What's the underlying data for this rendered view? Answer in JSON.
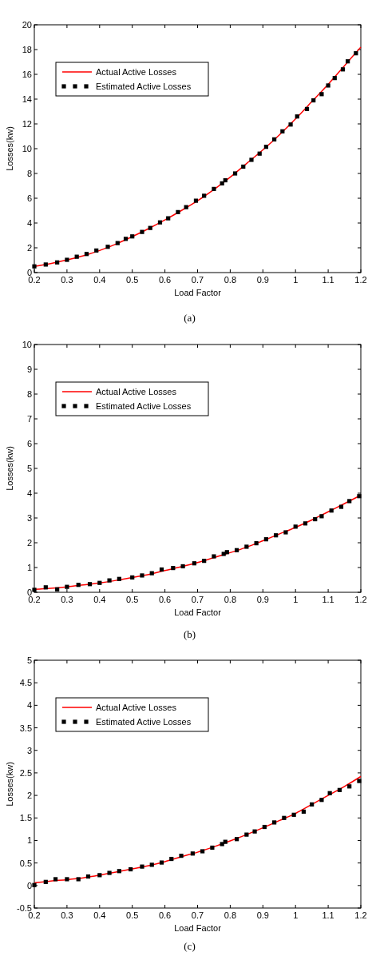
{
  "chart_data": [
    {
      "type": "line",
      "xlabel": "Load Factor",
      "ylabel": "Losses(kw)",
      "annotations": [
        "(a)"
      ],
      "xlim": [
        0.2,
        1.2
      ],
      "xticks": [
        0.2,
        0.3,
        0.4,
        0.5,
        0.6,
        0.7,
        0.8,
        0.9,
        1,
        1.1,
        1.2
      ],
      "ylim": [
        0,
        20
      ],
      "yticks": [
        0,
        2,
        4,
        6,
        8,
        10,
        12,
        14,
        16,
        18,
        20
      ],
      "legend": "top left",
      "grid": false,
      "series": [
        {
          "name": "Actual Active Losses",
          "type": "line",
          "color": "#ff0000",
          "marker": "none",
          "line_style": "solid",
          "x": [
            0.2,
            0.25,
            0.3,
            0.35,
            0.4,
            0.45,
            0.5,
            0.55,
            0.6,
            0.65,
            0.7,
            0.75,
            0.8,
            0.85,
            0.9,
            0.95,
            1.0,
            1.05,
            1.1,
            1.15,
            1.2
          ],
          "values": [
            0.5,
            0.72,
            1.02,
            1.35,
            1.78,
            2.3,
            2.9,
            3.55,
            4.25,
            5.0,
            5.8,
            6.7,
            7.7,
            8.8,
            9.9,
            11.1,
            12.4,
            13.8,
            15.2,
            16.7,
            18.2
          ]
        },
        {
          "name": "Estimated Active Losses",
          "type": "scatter",
          "color": "#000000",
          "marker": "square",
          "x": [
            0.2,
            0.235,
            0.27,
            0.3,
            0.33,
            0.36,
            0.39,
            0.425,
            0.455,
            0.48,
            0.5,
            0.53,
            0.555,
            0.585,
            0.61,
            0.64,
            0.665,
            0.695,
            0.72,
            0.75,
            0.775,
            0.785,
            0.815,
            0.84,
            0.865,
            0.89,
            0.91,
            0.935,
            0.96,
            0.985,
            1.005,
            1.035,
            1.055,
            1.08,
            1.1,
            1.12,
            1.145,
            1.16,
            1.185
          ],
          "values": [
            0.5,
            0.65,
            0.82,
            1.03,
            1.28,
            1.5,
            1.78,
            2.08,
            2.38,
            2.72,
            2.92,
            3.28,
            3.6,
            4.05,
            4.38,
            4.88,
            5.28,
            5.8,
            6.2,
            6.75,
            7.2,
            7.45,
            8.0,
            8.55,
            9.1,
            9.6,
            10.15,
            10.75,
            11.4,
            11.95,
            12.6,
            13.2,
            13.9,
            14.4,
            15.1,
            15.7,
            16.4,
            17.05,
            17.7
          ]
        }
      ]
    },
    {
      "type": "line",
      "xlabel": "Load Factor",
      "ylabel": "Losses(kw)",
      "annotations": [
        "(b)"
      ],
      "xlim": [
        0.2,
        1.2
      ],
      "xticks": [
        0.2,
        0.3,
        0.4,
        0.5,
        0.6,
        0.7,
        0.8,
        0.9,
        1,
        1.1,
        1.2
      ],
      "ylim": [
        0,
        10
      ],
      "yticks": [
        0,
        1,
        2,
        3,
        4,
        5,
        6,
        7,
        8,
        9,
        10
      ],
      "legend": "top left",
      "grid": false,
      "series": [
        {
          "name": "Actual Active Losses",
          "type": "line",
          "color": "#ff0000",
          "marker": "none",
          "line_style": "solid",
          "x": [
            0.2,
            0.25,
            0.3,
            0.35,
            0.4,
            0.45,
            0.5,
            0.55,
            0.6,
            0.65,
            0.7,
            0.75,
            0.8,
            0.85,
            0.9,
            0.95,
            1.0,
            1.05,
            1.1,
            1.15,
            1.2
          ],
          "values": [
            0.12,
            0.16,
            0.22,
            0.3,
            0.38,
            0.48,
            0.6,
            0.72,
            0.88,
            1.03,
            1.2,
            1.4,
            1.6,
            1.82,
            2.08,
            2.35,
            2.62,
            2.92,
            3.25,
            3.58,
            3.92
          ]
        },
        {
          "name": "Estimated Active Losses",
          "type": "scatter",
          "color": "#000000",
          "marker": "square",
          "x": [
            0.2,
            0.235,
            0.27,
            0.3,
            0.335,
            0.37,
            0.4,
            0.43,
            0.46,
            0.5,
            0.53,
            0.56,
            0.59,
            0.625,
            0.655,
            0.69,
            0.72,
            0.75,
            0.78,
            0.79,
            0.82,
            0.85,
            0.88,
            0.91,
            0.94,
            0.97,
            1.0,
            1.03,
            1.06,
            1.08,
            1.11,
            1.14,
            1.165,
            1.195
          ],
          "values": [
            0.1,
            0.2,
            0.12,
            0.22,
            0.3,
            0.33,
            0.38,
            0.48,
            0.54,
            0.6,
            0.68,
            0.77,
            0.92,
            0.98,
            1.05,
            1.17,
            1.27,
            1.45,
            1.55,
            1.62,
            1.7,
            1.84,
            1.98,
            2.14,
            2.3,
            2.42,
            2.65,
            2.78,
            2.95,
            3.07,
            3.3,
            3.45,
            3.68,
            3.88
          ]
        }
      ]
    },
    {
      "type": "line",
      "xlabel": "Load Factor",
      "ylabel": "Losses(kw)",
      "annotations": [
        "(c)"
      ],
      "xlim": [
        0.2,
        1.2
      ],
      "xticks": [
        0.2,
        0.3,
        0.4,
        0.5,
        0.6,
        0.7,
        0.8,
        0.9,
        1,
        1.1,
        1.2
      ],
      "ylim": [
        -0.5,
        5
      ],
      "yticks": [
        -0.5,
        0,
        0.5,
        1,
        1.5,
        2,
        2.5,
        3,
        3.5,
        4,
        4.5,
        5
      ],
      "legend": "top left",
      "grid": false,
      "series": [
        {
          "name": "Actual Active Losses",
          "type": "line",
          "color": "#ff0000",
          "marker": "none",
          "line_style": "solid",
          "x": [
            0.2,
            0.25,
            0.3,
            0.35,
            0.4,
            0.45,
            0.5,
            0.55,
            0.6,
            0.65,
            0.7,
            0.75,
            0.8,
            0.85,
            0.9,
            0.95,
            1.0,
            1.05,
            1.1,
            1.15,
            1.2
          ],
          "values": [
            0.06,
            0.1,
            0.13,
            0.17,
            0.23,
            0.3,
            0.37,
            0.44,
            0.53,
            0.64,
            0.74,
            0.86,
            0.99,
            1.13,
            1.28,
            1.44,
            1.6,
            1.8,
            2.0,
            2.2,
            2.42
          ]
        },
        {
          "name": "Estimated Active Losses",
          "type": "scatter",
          "color": "#000000",
          "marker": "square",
          "x": [
            0.2,
            0.235,
            0.265,
            0.3,
            0.335,
            0.365,
            0.4,
            0.43,
            0.46,
            0.495,
            0.53,
            0.56,
            0.59,
            0.62,
            0.65,
            0.685,
            0.715,
            0.745,
            0.775,
            0.785,
            0.82,
            0.85,
            0.875,
            0.905,
            0.935,
            0.965,
            0.995,
            1.025,
            1.05,
            1.08,
            1.105,
            1.135,
            1.165,
            1.195
          ],
          "values": [
            0.01,
            0.08,
            0.14,
            0.14,
            0.14,
            0.2,
            0.23,
            0.28,
            0.32,
            0.36,
            0.42,
            0.46,
            0.51,
            0.59,
            0.66,
            0.71,
            0.76,
            0.84,
            0.92,
            0.97,
            1.03,
            1.13,
            1.2,
            1.3,
            1.4,
            1.5,
            1.57,
            1.64,
            1.8,
            1.9,
            2.05,
            2.12,
            2.2,
            2.32
          ]
        }
      ]
    }
  ]
}
